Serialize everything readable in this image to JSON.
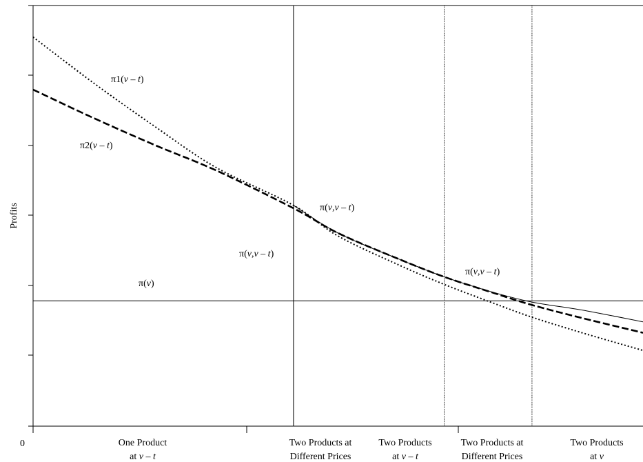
{
  "chart_data": {
    "type": "line",
    "title": "",
    "ylabel": "Profits",
    "xlabel": "",
    "origin_label": "0",
    "regions": [
      {
        "line1": "One Product",
        "line2_pre": "at ",
        "line2_var": "v",
        "line2_mid": " – ",
        "line2_var2": "t"
      },
      {
        "line1": "Two Products at",
        "line2_pre": "Different Prices",
        "line2_var": "",
        "line2_mid": "",
        "line2_var2": ""
      },
      {
        "line1": "Two Products",
        "line2_pre": "at ",
        "line2_var": "v",
        "line2_mid": " – ",
        "line2_var2": "t"
      },
      {
        "line1": "Two Products at",
        "line2_pre": "Different Prices",
        "line2_var": "",
        "line2_mid": "",
        "line2_var2": ""
      },
      {
        "line1": "Two Products",
        "line2_pre": "at ",
        "line2_var": "v",
        "line2_mid": "",
        "line2_var2": ""
      }
    ],
    "region_boundaries_x": [
      0.427,
      0.674,
      0.818
    ],
    "x_range": [
      0,
      1
    ],
    "y_range": [
      0,
      1
    ],
    "series": [
      {
        "style": "dotted",
        "x": [
          0,
          0.1,
          0.2,
          0.3,
          0.427,
          0.5,
          0.6,
          0.674,
          0.75,
          0.818,
          0.9,
          1.0
        ],
        "y": [
          0.925,
          0.815,
          0.712,
          0.615,
          0.525,
          0.452,
          0.383,
          0.337,
          0.295,
          0.259,
          0.222,
          0.18
        ]
      },
      {
        "style": "dashed",
        "x": [
          0,
          0.1,
          0.2,
          0.3,
          0.427,
          0.5,
          0.6,
          0.674,
          0.75,
          0.818,
          0.9,
          1.0
        ],
        "y": [
          0.8,
          0.732,
          0.668,
          0.608,
          0.518,
          0.459,
          0.397,
          0.355,
          0.319,
          0.288,
          0.257,
          0.222
        ]
      },
      {
        "style": "solid",
        "x": [
          0.427,
          0.5,
          0.6,
          0.674,
          0.75,
          0.818,
          0.9,
          1.0
        ],
        "y": [
          0.525,
          0.459,
          0.397,
          0.355,
          0.32,
          0.295,
          0.276,
          0.248
        ]
      },
      {
        "style": "solid",
        "x": [
          0,
          1
        ],
        "y": [
          0.298,
          0.298
        ]
      }
    ],
    "annotations": [
      {
        "id": "pi1",
        "pre": "π1(",
        "a": "v",
        "mid": " – ",
        "b": "t",
        "post": ")"
      },
      {
        "id": "pi2",
        "pre": "π2(",
        "a": "v",
        "mid": " – ",
        "b": "t",
        "post": ")"
      },
      {
        "id": "pivvt-a",
        "pre": "π(",
        "a": "v",
        "mid": ",",
        "b": "v",
        "mid2": " – ",
        "c": "t",
        "post": ")"
      },
      {
        "id": "pivvt-b",
        "pre": "π(",
        "a": "v",
        "mid": ",",
        "b": "v",
        "mid2": " – ",
        "c": "t",
        "post": ")"
      },
      {
        "id": "pivvt-c",
        "pre": "π(",
        "a": "v",
        "mid": ",",
        "b": "v",
        "mid2": " – ",
        "c": "t",
        "post": ")"
      },
      {
        "id": "piv",
        "pre": "π(",
        "a": "v",
        "mid": "",
        "b": "",
        "post": ")"
      }
    ]
  }
}
